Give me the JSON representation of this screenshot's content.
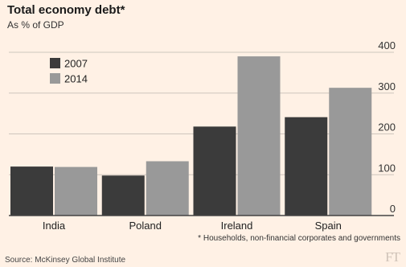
{
  "title": "Total economy debt*",
  "subtitle": "As % of GDP",
  "footnote": "* Households, non-financial corporates and governments",
  "source": "Source: McKinsey Global Institute",
  "logo_text": "FT",
  "colors": {
    "background": "#fff1e5",
    "series_2007": "#3b3b3b",
    "series_2014": "#999999",
    "grid": "#cec6bd",
    "axis": "#444444"
  },
  "chart_data": {
    "type": "bar",
    "title": "Total economy debt*",
    "subtitle": "As % of GDP",
    "categories": [
      "India",
      "Poland",
      "Ireland",
      "Spain"
    ],
    "series": [
      {
        "name": "2007",
        "values": [
          120,
          98,
          218,
          241
        ]
      },
      {
        "name": "2014",
        "values": [
          119,
          133,
          390,
          313
        ]
      }
    ],
    "ylim": [
      0,
      400
    ],
    "yticks": [
      0,
      100,
      200,
      300,
      400
    ],
    "ytick_side": "right",
    "grid": true,
    "legend_position": "top-left",
    "xlabel": "",
    "ylabel": ""
  }
}
